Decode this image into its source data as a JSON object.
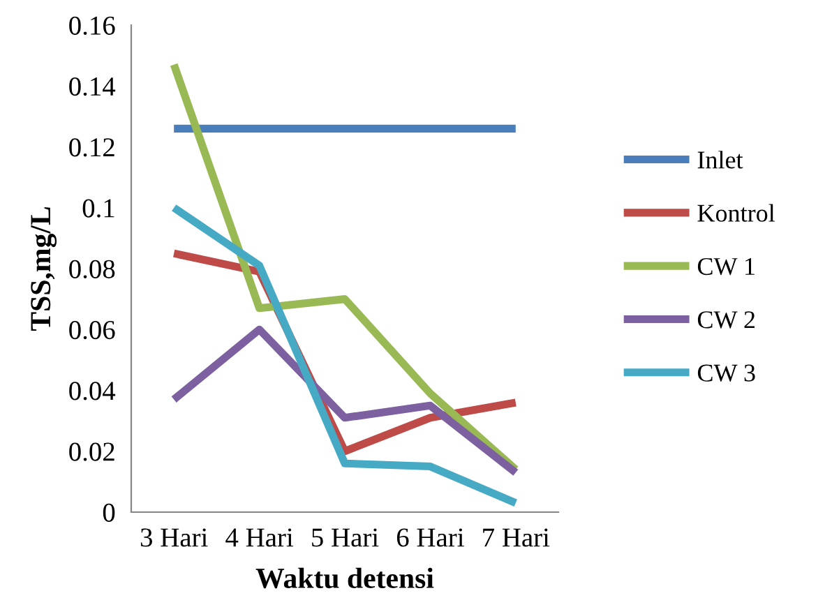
{
  "chart_data": {
    "type": "line",
    "xlabel": "Waktu detensi",
    "ylabel": "TSS,mg/L",
    "categories": [
      "3 Hari",
      "4 Hari",
      "5 Hari",
      "6 Hari",
      "7 Hari"
    ],
    "series": [
      {
        "name": "Inlet",
        "color": "#4a7ebb",
        "values": [
          0.126,
          0.126,
          0.126,
          0.126,
          0.126
        ]
      },
      {
        "name": "Kontrol",
        "color": "#be4b48",
        "values": [
          0.085,
          0.079,
          0.02,
          0.031,
          0.036
        ]
      },
      {
        "name": "CW 1",
        "color": "#98b954",
        "values": [
          0.147,
          0.067,
          0.07,
          0.039,
          0.014
        ]
      },
      {
        "name": "CW 2",
        "color": "#7d60a0",
        "values": [
          0.037,
          0.06,
          0.031,
          0.035,
          0.013
        ]
      },
      {
        "name": "CW 3",
        "color": "#46aac5",
        "values": [
          0.1,
          0.081,
          0.016,
          0.015,
          0.003
        ]
      }
    ],
    "ylim": [
      0,
      0.16
    ],
    "yticks": [
      {
        "value": 0,
        "label": "0"
      },
      {
        "value": 0.02,
        "label": "0.02"
      },
      {
        "value": 0.04,
        "label": "0.04"
      },
      {
        "value": 0.06,
        "label": "0.06"
      },
      {
        "value": 0.08,
        "label": "0.08"
      },
      {
        "value": 0.1,
        "label": "0.1"
      },
      {
        "value": 0.12,
        "label": "0.12"
      },
      {
        "value": 0.14,
        "label": "0.14"
      },
      {
        "value": 0.16,
        "label": "0.16"
      }
    ],
    "legend": "right",
    "grid": false,
    "marker": "none",
    "line_style": "solid"
  }
}
